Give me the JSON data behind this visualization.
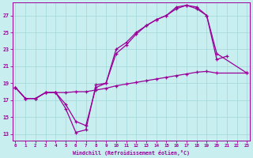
{
  "xlabel": "Windchill (Refroidissement éolien,°C)",
  "bg_color": "#c8eef0",
  "line_color": "#990099",
  "grid_color": "#a0d8d8",
  "x_ticks": [
    0,
    1,
    2,
    3,
    4,
    5,
    6,
    7,
    8,
    9,
    10,
    11,
    12,
    13,
    14,
    15,
    16,
    17,
    18,
    19,
    20,
    21,
    22,
    23
  ],
  "y_ticks": [
    13,
    15,
    17,
    19,
    21,
    23,
    25,
    27
  ],
  "xlim": [
    -0.3,
    23.3
  ],
  "ylim": [
    12.2,
    28.5
  ],
  "line1_x": [
    0,
    1,
    2,
    3,
    4,
    5,
    6,
    7,
    8,
    9,
    10,
    11,
    12,
    13,
    14,
    15,
    16,
    17,
    18,
    19,
    20,
    21
  ],
  "line1_y": [
    18.5,
    17.2,
    17.2,
    17.9,
    17.9,
    16.0,
    13.2,
    13.5,
    18.8,
    19.0,
    23.0,
    23.8,
    25.0,
    25.8,
    26.5,
    27.0,
    27.8,
    28.2,
    27.8,
    27.0,
    21.8,
    22.2
  ],
  "line2_x": [
    0,
    1,
    2,
    3,
    4,
    5,
    6,
    7,
    8,
    9,
    10,
    11,
    12,
    13,
    14,
    15,
    16,
    17,
    18,
    19,
    20,
    23
  ],
  "line2_y": [
    18.5,
    17.2,
    17.2,
    17.9,
    17.9,
    17.9,
    18.0,
    18.0,
    18.2,
    18.4,
    18.7,
    18.9,
    19.1,
    19.3,
    19.5,
    19.7,
    19.9,
    20.1,
    20.3,
    20.4,
    20.2,
    20.2
  ],
  "line3_x": [
    0,
    1,
    2,
    3,
    4,
    5,
    6,
    7,
    8,
    9,
    10,
    11,
    12,
    13,
    14,
    15,
    16,
    17,
    18,
    19,
    20,
    23
  ],
  "line3_y": [
    18.5,
    17.2,
    17.2,
    17.9,
    17.9,
    16.5,
    14.5,
    14.0,
    18.5,
    19.0,
    22.5,
    23.5,
    24.8,
    25.8,
    26.5,
    27.0,
    28.0,
    28.2,
    28.0,
    27.0,
    22.5,
    20.2
  ]
}
